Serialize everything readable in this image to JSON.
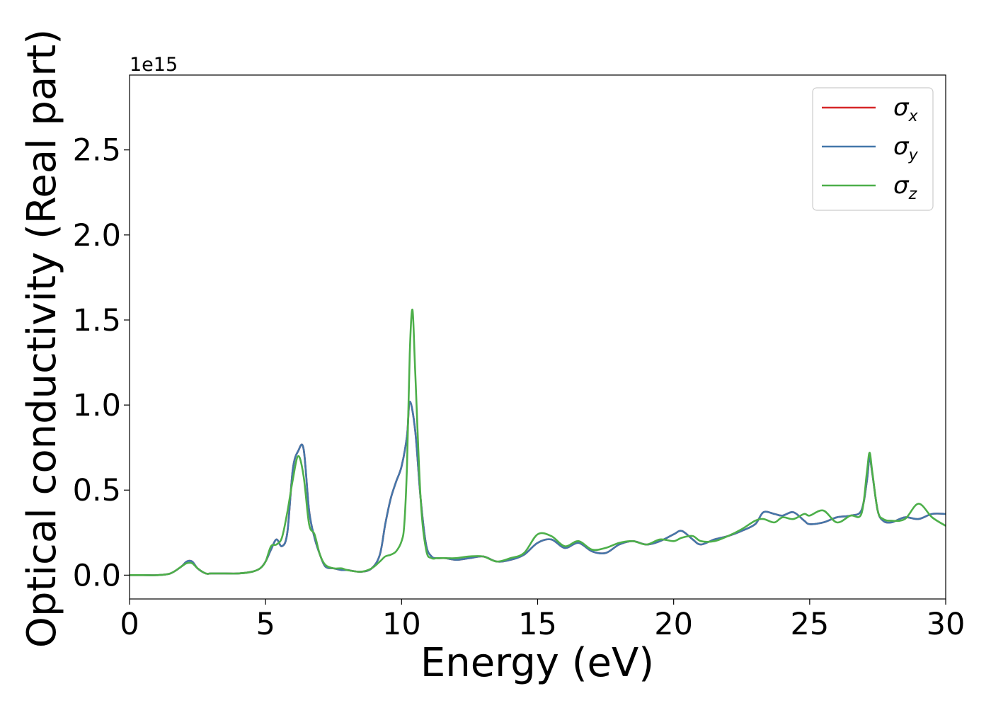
{
  "chart_data": {
    "type": "line",
    "title": "",
    "xlabel": "Energy (eV)",
    "ylabel": "Optical conductivity (Real part)",
    "y_offset_text": "1e15",
    "xlim": [
      0,
      30
    ],
    "ylim": [
      -0.14,
      2.94
    ],
    "x_ticks": [
      0,
      5,
      10,
      15,
      20,
      25,
      30
    ],
    "x_tick_labels": [
      "0",
      "5",
      "10",
      "15",
      "20",
      "25",
      "30"
    ],
    "y_ticks": [
      0.0,
      0.5,
      1.0,
      1.5,
      2.0,
      2.5
    ],
    "y_tick_labels": [
      "0.0",
      "0.5",
      "1.0",
      "1.5",
      "2.0",
      "2.5"
    ],
    "grid": false,
    "legend_position": "top-right",
    "series": [
      {
        "name": "σx",
        "symbol": "σ",
        "subscript": "x",
        "color": "#d62728",
        "x": [
          0,
          0.5,
          1,
          1.5,
          1.9,
          2.1,
          2.3,
          2.5,
          2.8,
          3,
          3.5,
          4,
          4.5,
          4.8,
          5,
          5.2,
          5.4,
          5.6,
          5.8,
          6,
          6.2,
          6.4,
          6.6,
          6.8,
          7,
          7.2,
          7.5,
          7.8,
          8,
          8.5,
          8.9,
          9.2,
          9.4,
          9.6,
          9.8,
          10,
          10.2,
          10.3,
          10.5,
          10.7,
          10.9,
          11.1,
          11.3,
          11.6,
          12,
          12.5,
          13,
          13.5,
          14,
          14.5,
          15,
          15.5,
          16,
          16.5,
          17,
          17.5,
          18,
          18.5,
          19,
          19.5,
          20,
          20.3,
          20.7,
          21,
          21.5,
          22,
          22.5,
          23,
          23.3,
          23.7,
          24,
          24.4,
          24.8,
          25,
          25.5,
          26,
          26.5,
          26.9,
          27.1,
          27.2,
          27.3,
          27.5,
          27.7,
          28,
          28.5,
          29,
          29.5,
          30
        ],
        "values": [
          0.0,
          0.0,
          0.0,
          0.01,
          0.05,
          0.08,
          0.08,
          0.04,
          0.01,
          0.01,
          0.01,
          0.01,
          0.02,
          0.04,
          0.08,
          0.15,
          0.21,
          0.17,
          0.25,
          0.62,
          0.73,
          0.74,
          0.38,
          0.22,
          0.12,
          0.05,
          0.04,
          0.03,
          0.03,
          0.02,
          0.04,
          0.12,
          0.3,
          0.45,
          0.55,
          0.64,
          0.82,
          1.02,
          0.85,
          0.45,
          0.18,
          0.11,
          0.1,
          0.1,
          0.09,
          0.1,
          0.11,
          0.08,
          0.09,
          0.12,
          0.19,
          0.21,
          0.16,
          0.19,
          0.14,
          0.13,
          0.18,
          0.2,
          0.18,
          0.2,
          0.24,
          0.26,
          0.21,
          0.18,
          0.21,
          0.23,
          0.26,
          0.3,
          0.37,
          0.36,
          0.35,
          0.37,
          0.32,
          0.3,
          0.31,
          0.34,
          0.35,
          0.38,
          0.55,
          0.69,
          0.6,
          0.38,
          0.32,
          0.31,
          0.34,
          0.33,
          0.36,
          0.36
        ]
      },
      {
        "name": "σy",
        "symbol": "σ",
        "subscript": "y",
        "color": "#4477aa",
        "x": [
          0,
          0.5,
          1,
          1.5,
          1.9,
          2.1,
          2.3,
          2.5,
          2.8,
          3,
          3.5,
          4,
          4.5,
          4.8,
          5,
          5.2,
          5.4,
          5.6,
          5.8,
          6,
          6.2,
          6.4,
          6.6,
          6.8,
          7,
          7.2,
          7.5,
          7.8,
          8,
          8.5,
          8.9,
          9.2,
          9.4,
          9.6,
          9.8,
          10,
          10.2,
          10.3,
          10.5,
          10.7,
          10.9,
          11.1,
          11.3,
          11.6,
          12,
          12.5,
          13,
          13.5,
          14,
          14.5,
          15,
          15.5,
          16,
          16.5,
          17,
          17.5,
          18,
          18.5,
          19,
          19.5,
          20,
          20.3,
          20.7,
          21,
          21.5,
          22,
          22.5,
          23,
          23.3,
          23.7,
          24,
          24.4,
          24.8,
          25,
          25.5,
          26,
          26.5,
          26.9,
          27.1,
          27.2,
          27.3,
          27.5,
          27.7,
          28,
          28.5,
          29,
          29.5,
          30
        ],
        "values": [
          0.0,
          0.0,
          0.0,
          0.01,
          0.05,
          0.08,
          0.08,
          0.04,
          0.01,
          0.01,
          0.01,
          0.01,
          0.02,
          0.04,
          0.08,
          0.15,
          0.21,
          0.17,
          0.25,
          0.62,
          0.73,
          0.74,
          0.38,
          0.22,
          0.12,
          0.05,
          0.04,
          0.03,
          0.03,
          0.02,
          0.04,
          0.12,
          0.3,
          0.45,
          0.55,
          0.64,
          0.82,
          1.02,
          0.85,
          0.45,
          0.18,
          0.11,
          0.1,
          0.1,
          0.09,
          0.1,
          0.11,
          0.08,
          0.09,
          0.12,
          0.19,
          0.21,
          0.16,
          0.19,
          0.14,
          0.13,
          0.18,
          0.2,
          0.18,
          0.2,
          0.24,
          0.26,
          0.21,
          0.18,
          0.21,
          0.23,
          0.26,
          0.3,
          0.37,
          0.36,
          0.35,
          0.37,
          0.32,
          0.3,
          0.31,
          0.34,
          0.35,
          0.38,
          0.55,
          0.69,
          0.6,
          0.38,
          0.32,
          0.31,
          0.34,
          0.33,
          0.36,
          0.36
        ]
      },
      {
        "name": "σz",
        "symbol": "σ",
        "subscript": "z",
        "color": "#4daf4a",
        "x": [
          0,
          0.5,
          1,
          1.5,
          1.9,
          2.1,
          2.3,
          2.5,
          2.8,
          3,
          3.5,
          4,
          4.5,
          4.8,
          5,
          5.2,
          5.4,
          5.6,
          5.8,
          6,
          6.2,
          6.4,
          6.6,
          6.8,
          7,
          7.2,
          7.5,
          7.8,
          8,
          8.5,
          8.9,
          9.2,
          9.4,
          9.6,
          9.8,
          10,
          10.1,
          10.2,
          10.3,
          10.4,
          10.5,
          10.7,
          10.9,
          11.1,
          11.3,
          11.6,
          12,
          12.5,
          13,
          13.5,
          14,
          14.5,
          15,
          15.5,
          16,
          16.5,
          17,
          17.5,
          18,
          18.5,
          19,
          19.5,
          20,
          20.3,
          20.7,
          21,
          21.5,
          22,
          22.5,
          23,
          23.3,
          23.7,
          24,
          24.4,
          24.8,
          25,
          25.5,
          26,
          26.5,
          26.9,
          27.1,
          27.2,
          27.3,
          27.5,
          27.7,
          28,
          28.5,
          29,
          29.5,
          30
        ],
        "values": [
          0.0,
          0.0,
          0.0,
          0.01,
          0.05,
          0.07,
          0.07,
          0.04,
          0.01,
          0.01,
          0.01,
          0.01,
          0.02,
          0.04,
          0.08,
          0.17,
          0.18,
          0.22,
          0.37,
          0.56,
          0.7,
          0.58,
          0.3,
          0.24,
          0.12,
          0.06,
          0.04,
          0.04,
          0.03,
          0.02,
          0.04,
          0.08,
          0.11,
          0.12,
          0.14,
          0.2,
          0.3,
          0.65,
          1.3,
          1.56,
          1.2,
          0.45,
          0.15,
          0.1,
          0.1,
          0.1,
          0.1,
          0.11,
          0.11,
          0.08,
          0.1,
          0.13,
          0.24,
          0.23,
          0.17,
          0.2,
          0.15,
          0.16,
          0.19,
          0.2,
          0.18,
          0.21,
          0.2,
          0.22,
          0.23,
          0.2,
          0.2,
          0.23,
          0.27,
          0.32,
          0.33,
          0.31,
          0.34,
          0.33,
          0.36,
          0.35,
          0.38,
          0.31,
          0.35,
          0.36,
          0.6,
          0.72,
          0.61,
          0.38,
          0.33,
          0.32,
          0.33,
          0.42,
          0.34,
          0.29
        ]
      }
    ]
  }
}
